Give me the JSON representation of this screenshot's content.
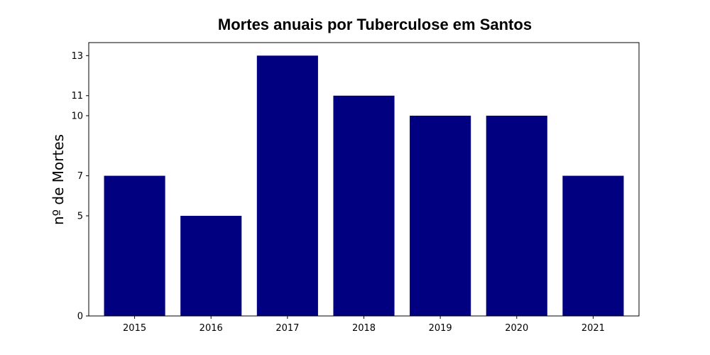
{
  "chart_data": {
    "type": "bar",
    "title": "Mortes anuais por Tuberculose em Santos",
    "xlabel": "",
    "ylabel": "nº de Mortes",
    "categories": [
      "2015",
      "2016",
      "2017",
      "2018",
      "2019",
      "2020",
      "2021"
    ],
    "values": [
      7,
      5,
      13,
      11,
      10,
      10,
      7
    ],
    "yticks": [
      0,
      5,
      7,
      10,
      11,
      13
    ],
    "ylim": [
      0,
      13.65
    ],
    "bar_color": "#000080",
    "grid": false,
    "legend": "none"
  }
}
